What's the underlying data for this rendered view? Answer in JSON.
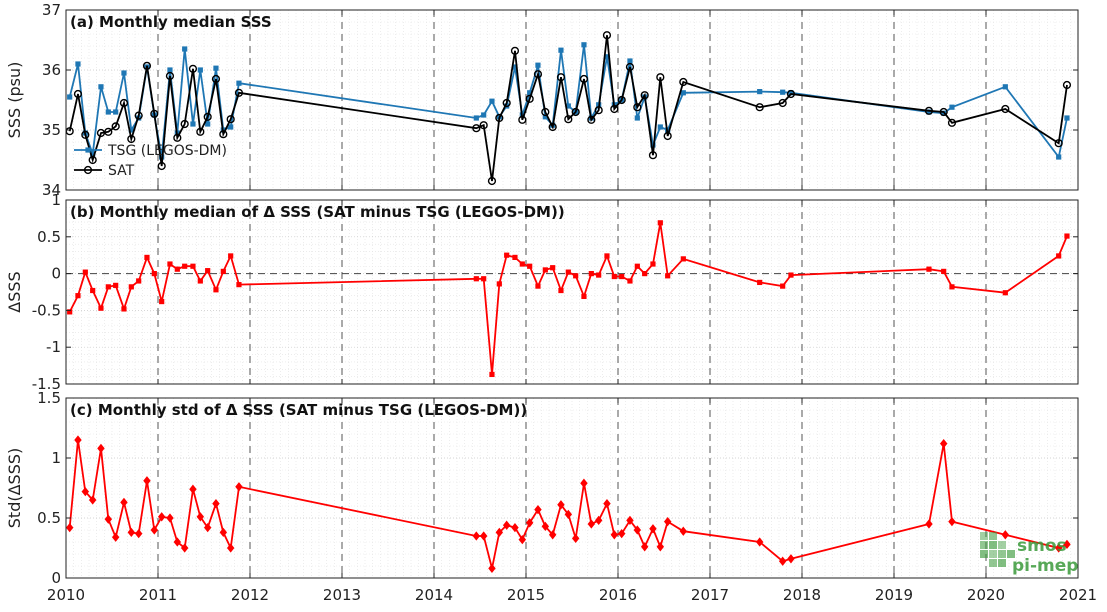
{
  "chart_data": [
    {
      "type": "line",
      "title": "(a) Monthly median SSS",
      "ylabel": "SSS (psu)",
      "ylim": [
        34,
        37
      ],
      "yticks": [
        34,
        35,
        36,
        37
      ],
      "xlim": [
        2010,
        2021
      ],
      "xticks": [
        2010,
        2011,
        2012,
        2013,
        2014,
        2015,
        2016,
        2017,
        2018,
        2019,
        2020,
        2021
      ],
      "grid": true,
      "legend": "bottom-left",
      "series": [
        {
          "name": "TSG (LEGOS-DM)",
          "color": "#1f77b4",
          "marker": "square",
          "x": [
            2010.04,
            2010.13,
            2010.21,
            2010.29,
            2010.38,
            2010.46,
            2010.54,
            2010.63,
            2010.71,
            2010.79,
            2010.88,
            2010.96,
            2011.04,
            2011.13,
            2011.21,
            2011.29,
            2011.38,
            2011.46,
            2011.54,
            2011.63,
            2011.71,
            2011.79,
            2011.88,
            2014.46,
            2014.54,
            2014.63,
            2014.71,
            2014.79,
            2014.88,
            2014.96,
            2015.04,
            2015.13,
            2015.21,
            2015.29,
            2015.38,
            2015.46,
            2015.54,
            2015.63,
            2015.71,
            2015.79,
            2015.88,
            2015.96,
            2016.04,
            2016.13,
            2016.21,
            2016.29,
            2016.38,
            2016.46,
            2016.54,
            2016.71,
            2017.54,
            2017.79,
            2017.88,
            2019.38,
            2019.54,
            2019.63,
            2020.21,
            2020.79,
            2020.88
          ],
          "y": [
            35.55,
            36.1,
            34.95,
            34.6,
            35.72,
            35.3,
            35.3,
            35.95,
            35.0,
            35.2,
            36.05,
            35.25,
            34.55,
            36.0,
            34.95,
            36.35,
            35.1,
            36.0,
            35.1,
            36.03,
            35.0,
            35.05,
            35.78,
            35.2,
            35.25,
            35.48,
            35.22,
            35.4,
            36.05,
            35.25,
            35.62,
            36.08,
            35.22,
            35.08,
            36.33,
            35.4,
            35.3,
            36.42,
            35.2,
            35.42,
            36.22,
            35.42,
            35.5,
            36.15,
            35.2,
            35.55,
            34.75,
            35.05,
            35.0,
            35.62,
            35.64,
            35.63,
            35.62,
            35.3,
            35.28,
            35.38,
            35.72,
            34.55,
            35.2
          ]
        },
        {
          "name": "SAT",
          "color": "#000000",
          "marker": "circle",
          "x": [
            2010.04,
            2010.13,
            2010.21,
            2010.29,
            2010.38,
            2010.46,
            2010.54,
            2010.63,
            2010.71,
            2010.79,
            2010.88,
            2010.96,
            2011.04,
            2011.13,
            2011.21,
            2011.29,
            2011.38,
            2011.46,
            2011.54,
            2011.63,
            2011.71,
            2011.79,
            2011.88,
            2014.46,
            2014.54,
            2014.63,
            2014.71,
            2014.79,
            2014.88,
            2014.96,
            2015.04,
            2015.13,
            2015.21,
            2015.29,
            2015.38,
            2015.46,
            2015.54,
            2015.63,
            2015.71,
            2015.79,
            2015.88,
            2015.96,
            2016.04,
            2016.13,
            2016.21,
            2016.29,
            2016.38,
            2016.46,
            2016.54,
            2016.71,
            2017.54,
            2017.79,
            2017.88,
            2019.38,
            2019.54,
            2019.63,
            2020.21,
            2020.79,
            2020.88
          ],
          "y": [
            34.98,
            35.6,
            34.92,
            34.5,
            34.95,
            34.97,
            35.06,
            35.45,
            34.85,
            35.24,
            36.07,
            35.27,
            34.4,
            35.9,
            34.87,
            35.1,
            36.02,
            34.97,
            35.22,
            35.85,
            34.93,
            35.18,
            35.62,
            35.03,
            35.08,
            34.15,
            35.2,
            35.45,
            36.32,
            35.17,
            35.52,
            35.93,
            35.3,
            35.05,
            35.88,
            35.18,
            35.3,
            35.85,
            35.17,
            35.33,
            36.58,
            35.35,
            35.5,
            36.05,
            35.38,
            35.58,
            34.58,
            35.88,
            34.9,
            35.8,
            35.38,
            35.45,
            35.6,
            35.32,
            35.3,
            35.12,
            35.35,
            34.78,
            35.75
          ]
        }
      ]
    },
    {
      "type": "line",
      "title": "(b) Monthly median of Δ SSS (SAT minus TSG (LEGOS-DM))",
      "ylabel": "ΔSSS",
      "ylim": [
        -1.5,
        1
      ],
      "yticks": [
        -1.5,
        -1,
        -0.5,
        0,
        0.5,
        1
      ],
      "xlim": [
        2010,
        2021
      ],
      "grid": true,
      "series": [
        {
          "color": "#ff0000",
          "marker": "square",
          "x": [
            2010.04,
            2010.13,
            2010.21,
            2010.29,
            2010.38,
            2010.46,
            2010.54,
            2010.63,
            2010.71,
            2010.79,
            2010.88,
            2010.96,
            2011.04,
            2011.13,
            2011.21,
            2011.29,
            2011.38,
            2011.46,
            2011.54,
            2011.63,
            2011.71,
            2011.79,
            2011.88,
            2014.46,
            2014.54,
            2014.63,
            2014.71,
            2014.79,
            2014.88,
            2014.96,
            2015.04,
            2015.13,
            2015.21,
            2015.29,
            2015.38,
            2015.46,
            2015.54,
            2015.63,
            2015.71,
            2015.79,
            2015.88,
            2015.96,
            2016.04,
            2016.13,
            2016.21,
            2016.29,
            2016.38,
            2016.46,
            2016.54,
            2016.71,
            2017.54,
            2017.79,
            2017.88,
            2019.38,
            2019.54,
            2019.63,
            2020.21,
            2020.79,
            2020.88
          ],
          "y": [
            -0.52,
            -0.3,
            0.02,
            -0.23,
            -0.47,
            -0.18,
            -0.16,
            -0.48,
            -0.18,
            -0.1,
            0.22,
            0.0,
            -0.38,
            0.13,
            0.06,
            0.1,
            0.1,
            -0.1,
            0.04,
            -0.22,
            0.03,
            0.24,
            -0.15,
            -0.07,
            -0.07,
            -1.37,
            -0.14,
            0.25,
            0.22,
            0.13,
            0.1,
            -0.17,
            0.05,
            0.08,
            -0.23,
            0.02,
            -0.03,
            -0.31,
            0.0,
            -0.02,
            0.24,
            -0.04,
            -0.04,
            -0.1,
            0.1,
            0.0,
            0.13,
            0.69,
            -0.03,
            0.2,
            -0.12,
            -0.17,
            -0.02,
            0.06,
            0.03,
            -0.18,
            -0.26,
            0.24,
            0.51
          ]
        }
      ]
    },
    {
      "type": "line",
      "title": "(c) Monthly std of Δ SSS (SAT minus TSG (LEGOS-DM))",
      "ylabel": "Std(ΔSSS)",
      "ylim": [
        0,
        1.5
      ],
      "yticks": [
        0,
        0.5,
        1,
        1.5
      ],
      "xlim": [
        2010,
        2021
      ],
      "grid": true,
      "series": [
        {
          "color": "#ff0000",
          "marker": "diamond",
          "x": [
            2010.04,
            2010.13,
            2010.21,
            2010.29,
            2010.38,
            2010.46,
            2010.54,
            2010.63,
            2010.71,
            2010.79,
            2010.88,
            2010.96,
            2011.04,
            2011.13,
            2011.21,
            2011.29,
            2011.38,
            2011.46,
            2011.54,
            2011.63,
            2011.71,
            2011.79,
            2011.88,
            2014.46,
            2014.54,
            2014.63,
            2014.71,
            2014.79,
            2014.88,
            2014.96,
            2015.04,
            2015.13,
            2015.21,
            2015.29,
            2015.38,
            2015.46,
            2015.54,
            2015.63,
            2015.71,
            2015.79,
            2015.88,
            2015.96,
            2016.04,
            2016.13,
            2016.21,
            2016.29,
            2016.38,
            2016.46,
            2016.54,
            2016.71,
            2017.54,
            2017.79,
            2017.88,
            2019.38,
            2019.54,
            2019.63,
            2020.21,
            2020.79,
            2020.88
          ],
          "y": [
            0.42,
            1.15,
            0.72,
            0.65,
            1.08,
            0.49,
            0.34,
            0.63,
            0.38,
            0.37,
            0.81,
            0.4,
            0.51,
            0.5,
            0.3,
            0.25,
            0.74,
            0.51,
            0.42,
            0.62,
            0.38,
            0.25,
            0.76,
            0.35,
            0.35,
            0.08,
            0.38,
            0.44,
            0.42,
            0.32,
            0.46,
            0.57,
            0.43,
            0.36,
            0.61,
            0.53,
            0.33,
            0.79,
            0.45,
            0.48,
            0.62,
            0.36,
            0.37,
            0.48,
            0.4,
            0.26,
            0.41,
            0.26,
            0.47,
            0.39,
            0.3,
            0.14,
            0.16,
            0.45,
            1.12,
            0.47,
            0.36,
            0.25,
            0.28
          ]
        }
      ]
    }
  ],
  "watermark": {
    "line1": "smos",
    "line2": "pi-mep",
    "color": "#3a9a3a"
  }
}
